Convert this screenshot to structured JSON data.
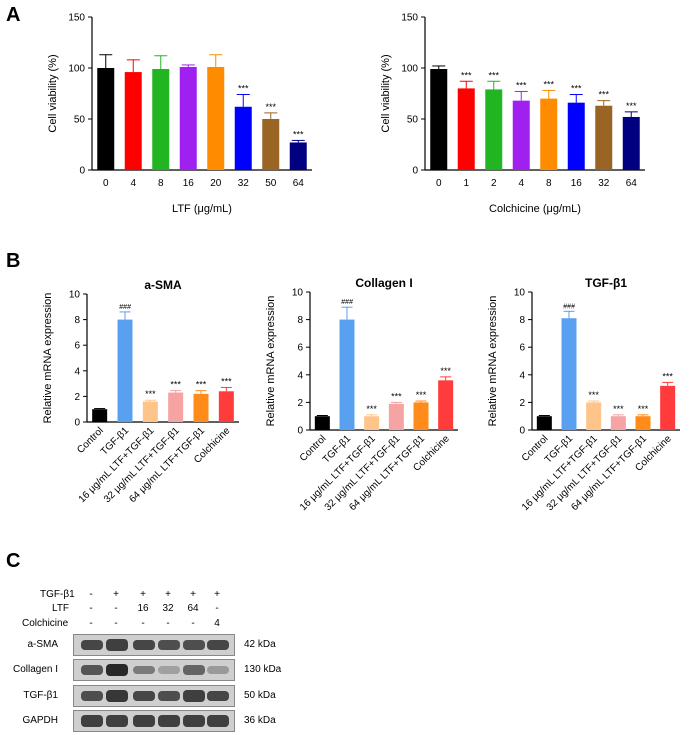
{
  "panels": {
    "a": "A",
    "b": "B",
    "c": "C"
  },
  "chart_data": [
    {
      "id": "A1",
      "type": "bar",
      "xlabel": "LTF (μg/mL)",
      "ylabel": "Cell viability (%)",
      "ylim": [
        0,
        150
      ],
      "yticks": [
        0,
        50,
        100,
        150
      ],
      "categories": [
        "0",
        "4",
        "8",
        "16",
        "20",
        "32",
        "50",
        "64"
      ],
      "values": [
        100,
        96,
        99,
        101,
        101,
        62,
        50,
        27
      ],
      "errors": [
        13,
        12,
        13,
        2,
        12,
        12,
        6,
        2
      ],
      "colors": [
        "#000000",
        "#ff0000",
        "#22b522",
        "#a020f0",
        "#ff8c00",
        "#0000ff",
        "#9a6424",
        "#000080"
      ],
      "annotations": [
        "",
        "",
        "",
        "",
        "",
        "***",
        "***",
        "***"
      ]
    },
    {
      "id": "A2",
      "type": "bar",
      "xlabel": "Colchicine (μg/mL)",
      "ylabel": "Cell viability (%)",
      "ylim": [
        0,
        150
      ],
      "yticks": [
        0,
        50,
        100,
        150
      ],
      "categories": [
        "0",
        "1",
        "2",
        "4",
        "8",
        "16",
        "32",
        "64"
      ],
      "values": [
        99,
        80,
        79,
        68,
        70,
        66,
        63,
        52
      ],
      "errors": [
        3,
        7,
        8,
        9,
        8,
        8,
        5,
        5
      ],
      "colors": [
        "#000000",
        "#ff0000",
        "#22b522",
        "#a020f0",
        "#ff8c00",
        "#0000ff",
        "#9a6424",
        "#000080"
      ],
      "annotations": [
        "",
        "***",
        "***",
        "***",
        "***",
        "***",
        "***",
        "***"
      ]
    },
    {
      "id": "B1",
      "type": "bar",
      "title": "a-SMA",
      "ylabel": "Relative mRNA expression",
      "ylim": [
        0,
        10
      ],
      "yticks": [
        0,
        2,
        4,
        6,
        8,
        10
      ],
      "categories": [
        "Control",
        "TGF-β1",
        "16 μg/mL LTF+TGF-β1",
        "32 μg/mL LTF+TGF-β1",
        "64 μg/mL LTF+TGF-β1",
        "Colchicine"
      ],
      "values": [
        1.0,
        8.0,
        1.6,
        2.3,
        2.2,
        2.4
      ],
      "errors": [
        0.05,
        0.6,
        0.1,
        0.15,
        0.25,
        0.3
      ],
      "colors": [
        "#000000",
        "#5aa0f0",
        "#ffc48a",
        "#f5a3a3",
        "#ff8c1a",
        "#ff3b3b"
      ],
      "annotations": [
        "",
        "###",
        "***",
        "***",
        "***",
        "***"
      ]
    },
    {
      "id": "B2",
      "type": "bar",
      "title": "Collagen I",
      "ylabel": "Relative mRNA expression",
      "ylim": [
        0,
        10
      ],
      "yticks": [
        0,
        2,
        4,
        6,
        8,
        10
      ],
      "categories": [
        "Control",
        "TGF-β1",
        "16 μg/mL LTF+TGF-β1",
        "32 μg/mL LTF+TGF-β1",
        "64 μg/mL LTF+TGF-β1",
        "Colchicine"
      ],
      "values": [
        1.0,
        8.0,
        1.0,
        1.9,
        2.0,
        3.6
      ],
      "errors": [
        0.05,
        0.9,
        0.1,
        0.1,
        0.1,
        0.25
      ],
      "colors": [
        "#000000",
        "#5aa0f0",
        "#ffc48a",
        "#f5a3a3",
        "#ff8c1a",
        "#ff3b3b"
      ],
      "annotations": [
        "",
        "###",
        "***",
        "***",
        "***",
        "***"
      ]
    },
    {
      "id": "B3",
      "type": "bar",
      "title": "TGF-β1",
      "ylabel": "Relative mRNA expression",
      "ylim": [
        0,
        10
      ],
      "yticks": [
        0,
        2,
        4,
        6,
        8,
        10
      ],
      "categories": [
        "Control",
        "TGF-β1",
        "16 μg/mL LTF+TGF-β1",
        "32 μg/mL LTF+TGF-β1",
        "64 μg/mL LTF+TGF-β1",
        "Colchicine"
      ],
      "values": [
        1.0,
        8.1,
        2.0,
        1.0,
        1.0,
        3.2
      ],
      "errors": [
        0.05,
        0.5,
        0.1,
        0.1,
        0.1,
        0.25
      ],
      "colors": [
        "#000000",
        "#5aa0f0",
        "#ffc48a",
        "#f5a3a3",
        "#ff8c1a",
        "#ff3b3b"
      ],
      "annotations": [
        "",
        "###",
        "***",
        "***",
        "***",
        "***"
      ]
    }
  ],
  "western_blot": {
    "treatments": [
      {
        "label": "TGF-β1",
        "values": [
          "-",
          "+",
          "+",
          "+",
          "+",
          "+"
        ]
      },
      {
        "label": "LTF",
        "values": [
          "-",
          "-",
          "16",
          "32",
          "64",
          "-"
        ]
      },
      {
        "label": "Colchicine",
        "values": [
          "-",
          "-",
          "-",
          "-",
          "-",
          "4"
        ]
      }
    ],
    "bands": [
      {
        "name": "a-SMA",
        "kda": "42 kDa",
        "intensity": [
          0.8,
          0.85,
          0.8,
          0.75,
          0.75,
          0.8
        ]
      },
      {
        "name": "Collagen I",
        "kda": "130 kDa",
        "intensity": [
          0.7,
          1.0,
          0.45,
          0.2,
          0.6,
          0.25
        ]
      },
      {
        "name": "TGF-β1",
        "kda": "50 kDa",
        "intensity": [
          0.75,
          0.9,
          0.8,
          0.75,
          0.85,
          0.8
        ]
      },
      {
        "name": "GAPDH",
        "kda": "36 kDa",
        "intensity": [
          0.85,
          0.85,
          0.85,
          0.85,
          0.85,
          0.85
        ]
      }
    ]
  }
}
